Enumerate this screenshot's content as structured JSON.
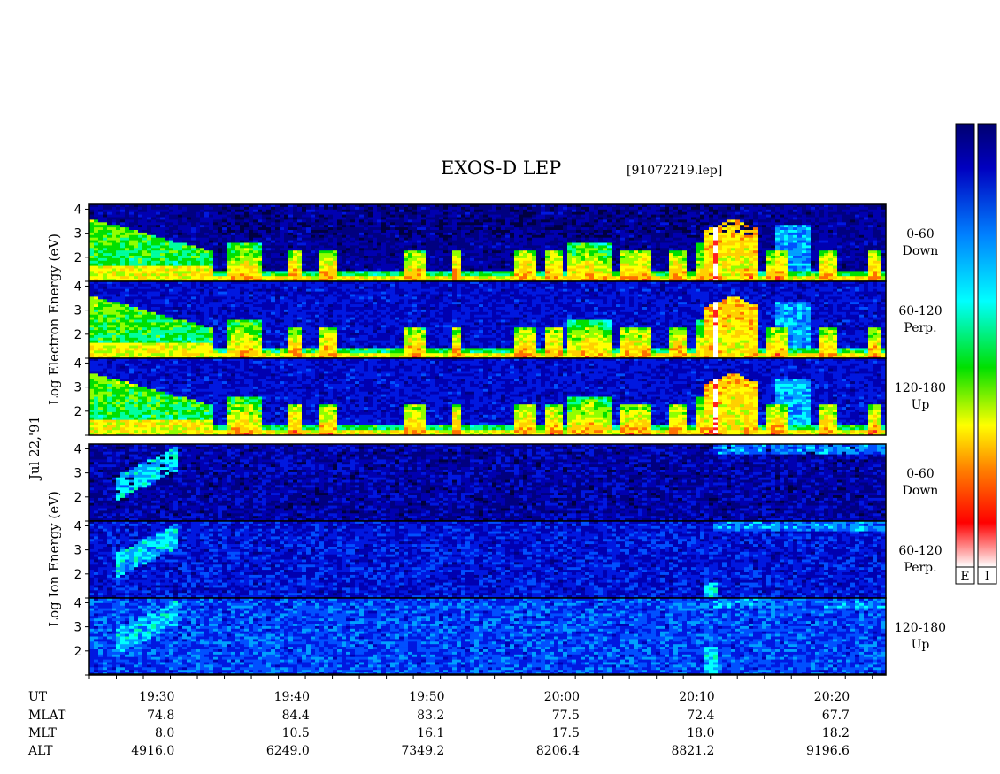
{
  "title": "EXOS-D LEP",
  "subtitle": "[91072219.lep]",
  "date_label": "Jul 22,'91",
  "groups": [
    {
      "species": "Electron",
      "ylabel_parts": [
        "Log",
        "Electron",
        "Energy",
        "(eV)"
      ]
    },
    {
      "species": "Ion",
      "ylabel_parts": [
        "Log",
        "Ion",
        "Energy",
        "(eV)"
      ]
    }
  ],
  "panel_labels": [
    [
      "0-60",
      "Down"
    ],
    [
      "60-120",
      "Perp."
    ],
    [
      "120-180",
      "Up"
    ],
    [
      "0-60",
      "Down"
    ],
    [
      "60-120",
      "Perp."
    ],
    [
      "120-180",
      "Up"
    ]
  ],
  "colorbar": {
    "labels": [
      "E",
      "I"
    ]
  },
  "footer": {
    "row_labels": [
      "UT",
      "MLAT",
      "MLT",
      "ALT"
    ],
    "columns": [
      {
        "UT": "19:30",
        "MLAT": "74.8",
        "MLT": "8.0",
        "ALT": "4916.0"
      },
      {
        "UT": "19:40",
        "MLAT": "84.4",
        "MLT": "10.5",
        "ALT": "6249.0"
      },
      {
        "UT": "19:50",
        "MLAT": "83.2",
        "MLT": "16.1",
        "ALT": "7349.2"
      },
      {
        "UT": "20:00",
        "MLAT": "77.5",
        "MLT": "17.5",
        "ALT": "8206.4"
      },
      {
        "UT": "20:10",
        "MLAT": "72.4",
        "MLT": "18.0",
        "ALT": "8821.2"
      },
      {
        "UT": "20:20",
        "MLAT": "67.7",
        "MLT": "18.2",
        "ALT": "9196.6"
      }
    ]
  },
  "chart_data": {
    "type": "heatmap",
    "title": "EXOS-D LEP",
    "xlabel": "UT",
    "ylabel": "Log Energy (eV)",
    "x_ticks": [
      "19:30",
      "19:40",
      "19:50",
      "20:00",
      "20:10",
      "20:20"
    ],
    "xlim": [
      "19:25",
      "20:24"
    ],
    "ylim": [
      1,
      4.2
    ],
    "y_ticks": [
      2,
      3,
      4
    ],
    "panels": [
      {
        "species": "Electron",
        "pitch_angle": "0-60",
        "direction": "Down"
      },
      {
        "species": "Electron",
        "pitch_angle": "60-120",
        "direction": "Perp."
      },
      {
        "species": "Electron",
        "pitch_angle": "120-180",
        "direction": "Up"
      },
      {
        "species": "Ion",
        "pitch_angle": "0-60",
        "direction": "Down"
      },
      {
        "species": "Ion",
        "pitch_angle": "60-120",
        "direction": "Perp."
      },
      {
        "species": "Ion",
        "pitch_angle": "120-180",
        "direction": "Up"
      }
    ],
    "colorscale": [
      "#ffffff",
      "#ff0000",
      "#ffa500",
      "#ffff00",
      "#00ff00",
      "#00ffff",
      "#0080ff",
      "#0000c0",
      "#000060"
    ]
  }
}
